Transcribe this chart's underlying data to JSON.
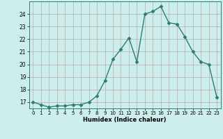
{
  "x": [
    0,
    1,
    2,
    3,
    4,
    5,
    6,
    7,
    8,
    9,
    10,
    11,
    12,
    13,
    14,
    15,
    16,
    17,
    18,
    19,
    20,
    21,
    22,
    23
  ],
  "y": [
    17.0,
    16.8,
    16.6,
    16.7,
    16.7,
    16.8,
    16.8,
    17.0,
    17.5,
    18.7,
    20.4,
    21.2,
    22.1,
    20.2,
    24.0,
    24.2,
    24.6,
    23.3,
    23.2,
    22.2,
    21.0,
    20.2,
    20.0,
    17.4
  ],
  "line_color": "#2d7d6e",
  "marker": "D",
  "marker_size": 2.5,
  "bg_color": "#cceeed",
  "grid_color": "#c0a8a8",
  "xlabel": "Humidex (Indice chaleur)",
  "ylim": [
    16.5,
    25.0
  ],
  "xlim": [
    -0.5,
    23.5
  ],
  "yticks": [
    17,
    18,
    19,
    20,
    21,
    22,
    23,
    24
  ],
  "xticks": [
    0,
    1,
    2,
    3,
    4,
    5,
    6,
    7,
    8,
    9,
    10,
    11,
    12,
    13,
    14,
    15,
    16,
    17,
    18,
    19,
    20,
    21,
    22,
    23
  ]
}
